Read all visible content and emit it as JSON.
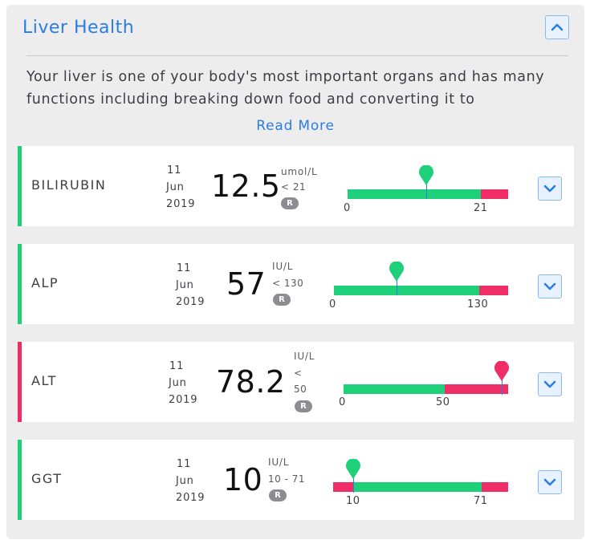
{
  "header": {
    "title": "Liver Health",
    "intro_text": "Your liver is one of your body's most important organs and has many functions including breaking down food and converting it to",
    "read_more": "Read More",
    "collapse_icon": "chevron-up-icon"
  },
  "colors": {
    "accent": "#2a7de1",
    "normal": "#1ed07a",
    "high": "#ef2d67"
  },
  "tests": [
    {
      "name": "BILIRUBIN",
      "day": "11",
      "month": "Jun",
      "year": "2019",
      "value": "12.5",
      "unit": "umol/L",
      "range": "< 21",
      "badge": "R",
      "status": "normal",
      "tick_low": "0",
      "tick_high": "21",
      "expand_icon": "chevron-down-icon"
    },
    {
      "name": "ALP",
      "day": "11",
      "month": "Jun",
      "year": "2019",
      "value": "57",
      "unit": "IU/L",
      "range": "< 130",
      "badge": "R",
      "status": "normal",
      "tick_low": "0",
      "tick_high": "130",
      "expand_icon": "chevron-down-icon"
    },
    {
      "name": "ALT",
      "day": "11",
      "month": "Jun",
      "year": "2019",
      "value": "78.2",
      "unit": "IU/L",
      "range_line1": "<",
      "range_line2": "50",
      "badge": "R",
      "status": "high",
      "tick_low": "0",
      "tick_high": "50",
      "expand_icon": "chevron-down-icon"
    },
    {
      "name": "GGT",
      "day": "11",
      "month": "Jun",
      "year": "2019",
      "value": "10",
      "unit": "IU/L",
      "range": "10 - 71",
      "badge": "R",
      "status": "normal",
      "tick_low": "10",
      "tick_high": "71",
      "expand_icon": "chevron-down-icon"
    }
  ]
}
